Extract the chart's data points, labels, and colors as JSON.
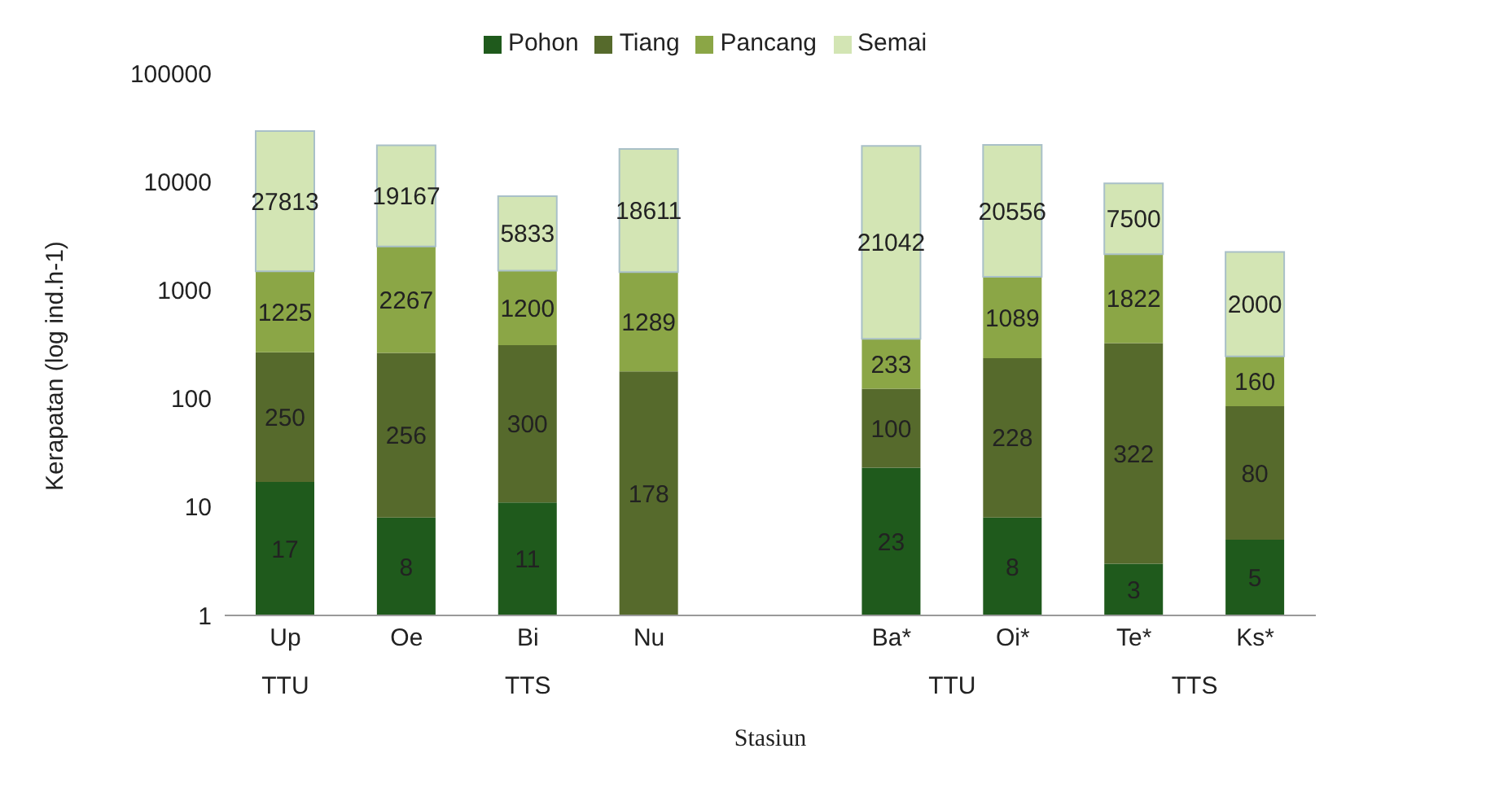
{
  "chart_data": {
    "type": "bar",
    "stacked": true,
    "log": true,
    "ylabel": "Kerapatan (log ind.h-1)",
    "xlabel": "Stasiun",
    "categories": [
      "Up",
      "Oe",
      "Bi",
      "Nu",
      null,
      "Ba*",
      "Oi*",
      "Te*",
      "Ks*"
    ],
    "series": [
      {
        "name": "Pohon",
        "color": "#1f5a1c",
        "values": [
          17,
          8,
          11,
          null,
          null,
          23,
          8,
          3,
          5
        ]
      },
      {
        "name": "Tiang",
        "color": "#566a2c",
        "values": [
          250,
          256,
          300,
          178,
          null,
          100,
          228,
          322,
          80
        ]
      },
      {
        "name": "Pancang",
        "color": "#8ba646",
        "values": [
          1225,
          2267,
          1200,
          1289,
          null,
          233,
          1089,
          1822,
          160
        ]
      },
      {
        "name": "Semai",
        "color": "#d3e5b4",
        "values": [
          27813,
          19167,
          5833,
          18611,
          null,
          21042,
          20556,
          7500,
          2000
        ]
      }
    ],
    "ylim": [
      1,
      100000
    ],
    "yticks": [
      1,
      10,
      100,
      1000,
      10000,
      100000
    ],
    "data_labels": true,
    "legend": "top",
    "grid": false,
    "annotations": [
      "TTU",
      "TTS",
      "TTU",
      "TTS"
    ]
  }
}
